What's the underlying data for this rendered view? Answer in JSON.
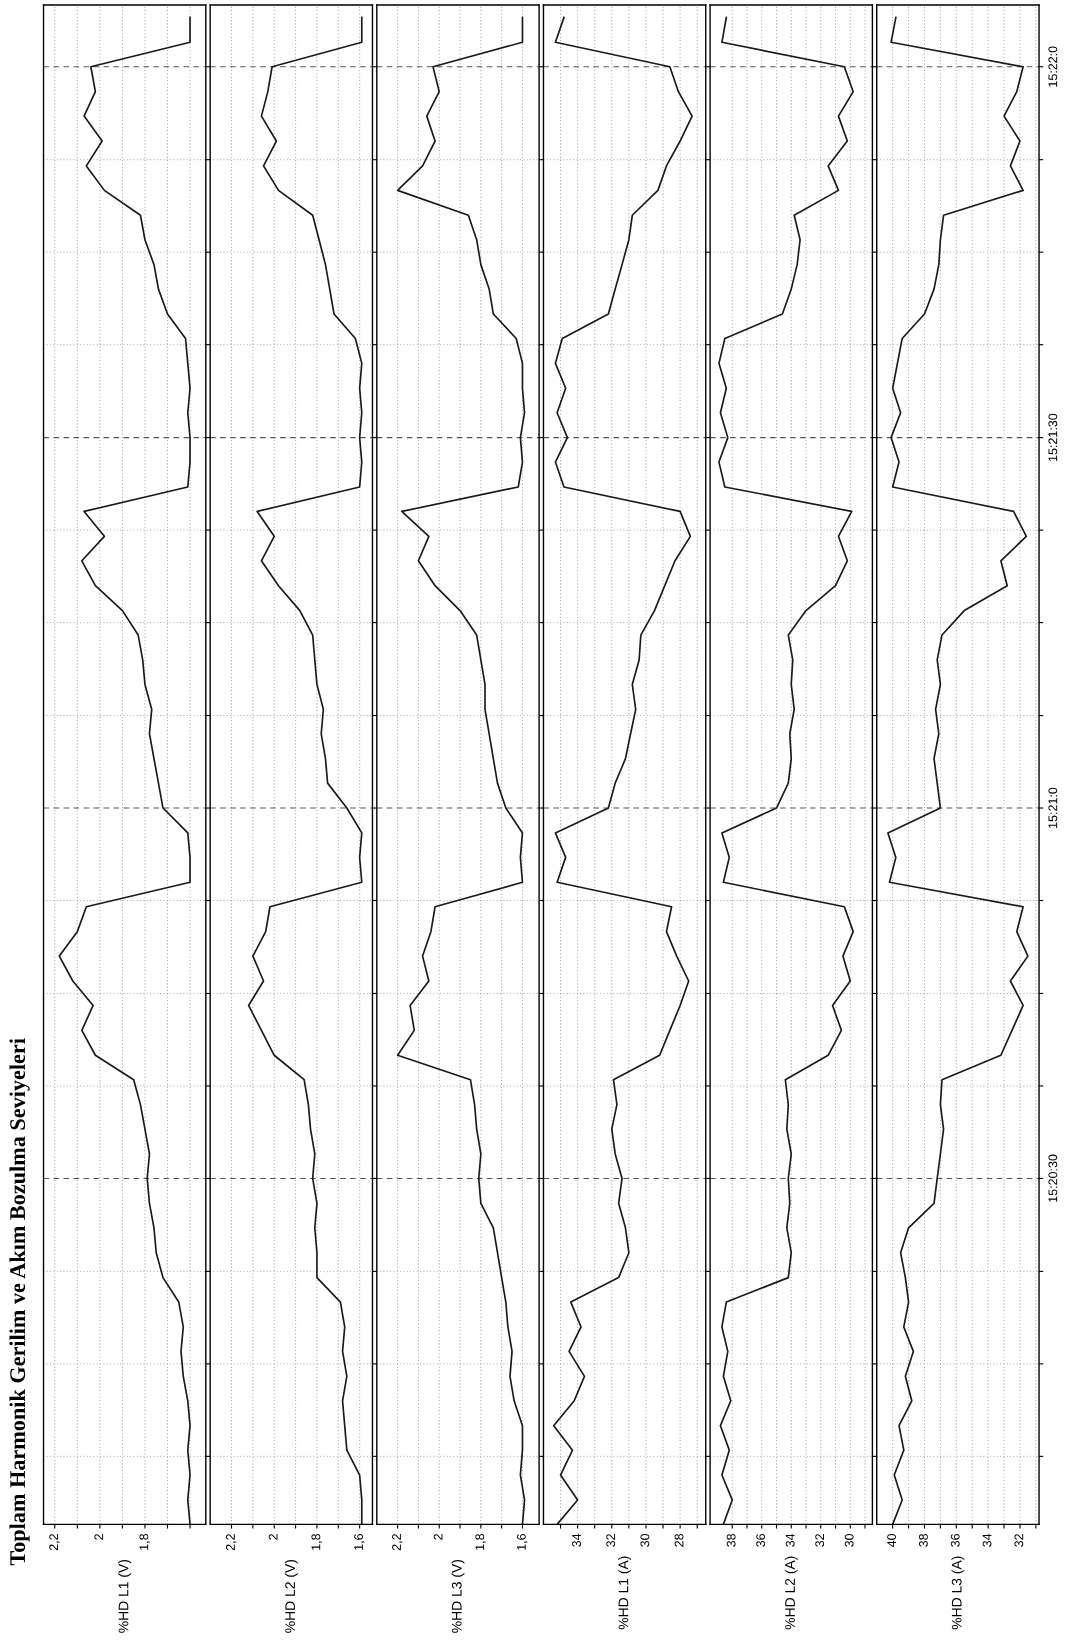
{
  "chart_data": [
    {
      "type": "line",
      "orientation": "horizontal",
      "title": "Toplam Harmonik Gerilim ve Akım Bozulma Seviyeleri",
      "ylabel": "%HD L1 (V)",
      "x": [
        15.33389,
        15.33444,
        15.335,
        15.33556,
        15.33611,
        15.33667,
        15.33722,
        15.33778,
        15.33833,
        15.33889,
        15.33944,
        15.34,
        15.34056,
        15.34111,
        15.34167,
        15.34222,
        15.34278,
        15.34333,
        15.34389,
        15.34444,
        15.345,
        15.34556,
        15.34611,
        15.34667,
        15.34722,
        15.34778,
        15.34833,
        15.34889,
        15.34944,
        15.35,
        15.35056,
        15.35111,
        15.35167,
        15.35222,
        15.35278,
        15.35333,
        15.35389,
        15.35444,
        15.355,
        15.35556,
        15.35611,
        15.35667,
        15.35722,
        15.35778,
        15.35833,
        15.35889,
        15.35944,
        15.36,
        15.36056,
        15.36111,
        15.36167,
        15.36222,
        15.36278,
        15.36333,
        15.36389,
        15.36444,
        15.365,
        15.36556,
        15.36611,
        15.36667,
        15.36722,
        15.36778
      ],
      "series": [
        {
          "color": "#1a1a1a",
          "values": [
            1.6,
            1.61,
            1.6,
            1.61,
            1.6,
            1.61,
            1.63,
            1.64,
            1.63,
            1.65,
            1.72,
            1.75,
            1.76,
            1.78,
            1.79,
            1.78,
            1.8,
            1.82,
            1.85,
            2.02,
            2.08,
            2.03,
            2.12,
            2.18,
            2.1,
            2.06,
            1.6,
            1.6,
            1.61,
            1.72,
            1.74,
            1.76,
            1.78,
            1.77,
            1.8,
            1.81,
            1.83,
            1.9,
            2.02,
            2.08,
            1.98,
            2.07,
            1.61,
            1.6,
            1.6,
            1.61,
            1.6,
            1.61,
            1.62,
            1.7,
            1.74,
            1.76,
            1.8,
            1.82,
            1.98,
            2.06,
            1.99,
            2.07,
            2.02,
            2.04,
            1.6,
            1.6
          ]
        }
      ],
      "xlim": [
        2.25,
        1.53
      ],
      "xticks": [
        {
          "value": 2.2,
          "label": "2,2"
        },
        {
          "value": 2.1,
          "label": null
        },
        2,
        {
          "value": 1.9,
          "label": null
        },
        {
          "value": 1.8,
          "label": "1,8"
        },
        {
          "value": 1.7,
          "label": null
        },
        {
          "value": 1.6,
          "label": null
        }
      ],
      "ylim": [
        15.33389,
        15.36806
      ],
      "yticks": [
        {
          "value": 15.33542,
          "label": null
        },
        {
          "value": 15.3375,
          "label": null
        },
        {
          "value": 15.33958,
          "label": null
        },
        {
          "value": 15.34167,
          "label": null
        },
        {
          "value": 15.34375,
          "label": null
        },
        {
          "value": 15.34583,
          "label": null
        },
        {
          "value": 15.34792,
          "label": null
        },
        {
          "value": 15.35,
          "label": null
        },
        {
          "value": 15.35208,
          "label": null
        },
        {
          "value": 15.35417,
          "label": null
        },
        {
          "value": 15.35625,
          "label": null
        },
        {
          "value": 15.35833,
          "label": null
        },
        {
          "value": 15.36042,
          "label": null
        },
        {
          "value": 15.3625,
          "label": null
        },
        {
          "value": 15.36458,
          "label": null
        },
        {
          "value": 15.36667,
          "label": null
        }
      ],
      "grid": true,
      "tick_labels": "x"
    },
    {
      "type": "line",
      "orientation": "horizontal",
      "ylabel": "%HD L2 (V)",
      "x": [
        15.33389,
        15.33444,
        15.335,
        15.33556,
        15.33611,
        15.33667,
        15.33722,
        15.33778,
        15.33833,
        15.33889,
        15.33944,
        15.34,
        15.34056,
        15.34111,
        15.34167,
        15.34222,
        15.34278,
        15.34333,
        15.34389,
        15.34444,
        15.345,
        15.34556,
        15.34611,
        15.34667,
        15.34722,
        15.34778,
        15.34833,
        15.34889,
        15.34944,
        15.35,
        15.35056,
        15.35111,
        15.35167,
        15.35222,
        15.35278,
        15.35333,
        15.35389,
        15.35444,
        15.355,
        15.35556,
        15.35611,
        15.35667,
        15.35722,
        15.35778,
        15.35833,
        15.35889,
        15.35944,
        15.36,
        15.36056,
        15.36111,
        15.36167,
        15.36222,
        15.36278,
        15.36333,
        15.36389,
        15.36444,
        15.365,
        15.36556,
        15.36611,
        15.36667,
        15.36722,
        15.36778
      ],
      "series": [
        {
          "color": "#1a1a1a",
          "values": [
            1.59,
            1.59,
            1.6,
            1.66,
            1.67,
            1.68,
            1.66,
            1.68,
            1.67,
            1.69,
            1.8,
            1.8,
            1.81,
            1.8,
            1.82,
            1.81,
            1.83,
            1.84,
            1.86,
            2.0,
            2.06,
            2.12,
            2.05,
            2.1,
            2.04,
            2.02,
            1.59,
            1.6,
            1.59,
            1.66,
            1.75,
            1.76,
            1.78,
            1.77,
            1.8,
            1.81,
            1.82,
            1.88,
            1.98,
            2.06,
            2.0,
            2.08,
            1.6,
            1.59,
            1.6,
            1.59,
            1.6,
            1.59,
            1.62,
            1.72,
            1.74,
            1.76,
            1.79,
            1.82,
            1.98,
            2.05,
            1.99,
            2.06,
            2.03,
            2.01,
            1.59,
            1.59
          ]
        }
      ],
      "xlim": [
        2.3,
        1.54
      ],
      "xticks": [
        {
          "value": 2.2,
          "label": "2,2"
        },
        {
          "value": 2.1,
          "label": null
        },
        2,
        {
          "value": 1.9,
          "label": null
        },
        {
          "value": 1.8,
          "label": "1,8"
        },
        {
          "value": 1.7,
          "label": null
        },
        {
          "value": 1.6,
          "label": "1,6"
        }
      ],
      "ylim": [
        15.33389,
        15.36806
      ],
      "yticks": [
        {
          "value": 15.33542,
          "label": null
        },
        {
          "value": 15.3375,
          "label": null
        },
        {
          "value": 15.33958,
          "label": null
        },
        {
          "value": 15.34167,
          "label": null
        },
        {
          "value": 15.34375,
          "label": null
        },
        {
          "value": 15.34583,
          "label": null
        },
        {
          "value": 15.34792,
          "label": null
        },
        {
          "value": 15.35,
          "label": null
        },
        {
          "value": 15.35208,
          "label": null
        },
        {
          "value": 15.35417,
          "label": null
        },
        {
          "value": 15.35625,
          "label": null
        },
        {
          "value": 15.35833,
          "label": null
        },
        {
          "value": 15.36042,
          "label": null
        },
        {
          "value": 15.3625,
          "label": null
        },
        {
          "value": 15.36458,
          "label": null
        },
        {
          "value": 15.36667,
          "label": null
        }
      ],
      "grid": true,
      "tick_labels": "x"
    },
    {
      "type": "line",
      "orientation": "horizontal",
      "ylabel": "%HD L3 (V)",
      "x": [
        15.33389,
        15.33444,
        15.335,
        15.33556,
        15.33611,
        15.33667,
        15.33722,
        15.33778,
        15.33833,
        15.33889,
        15.33944,
        15.34,
        15.34056,
        15.34111,
        15.34167,
        15.34222,
        15.34278,
        15.34333,
        15.34389,
        15.34444,
        15.345,
        15.34556,
        15.34611,
        15.34667,
        15.34722,
        15.34778,
        15.34833,
        15.34889,
        15.34944,
        15.35,
        15.35056,
        15.35111,
        15.35167,
        15.35222,
        15.35278,
        15.35333,
        15.35389,
        15.35444,
        15.355,
        15.35556,
        15.35611,
        15.35667,
        15.35722,
        15.35778,
        15.35833,
        15.35889,
        15.35944,
        15.36,
        15.36056,
        15.36111,
        15.36167,
        15.36222,
        15.36278,
        15.36333,
        15.36389,
        15.36444,
        15.365,
        15.36556,
        15.36611,
        15.36667,
        15.36722,
        15.36778
      ],
      "series": [
        {
          "color": "#1a1a1a",
          "values": [
            1.6,
            1.59,
            1.61,
            1.6,
            1.6,
            1.64,
            1.66,
            1.65,
            1.67,
            1.68,
            1.7,
            1.72,
            1.74,
            1.8,
            1.81,
            1.8,
            1.82,
            1.83,
            1.85,
            2.2,
            2.12,
            2.14,
            2.05,
            2.08,
            2.04,
            2.02,
            1.6,
            1.61,
            1.6,
            1.68,
            1.72,
            1.74,
            1.76,
            1.78,
            1.78,
            1.8,
            1.82,
            1.9,
            2.02,
            2.1,
            2.05,
            2.18,
            1.62,
            1.6,
            1.61,
            1.59,
            1.6,
            1.6,
            1.63,
            1.74,
            1.76,
            1.8,
            1.82,
            1.86,
            2.2,
            2.08,
            2.02,
            2.06,
            2.0,
            2.03,
            1.6,
            1.6
          ]
        }
      ],
      "xlim": [
        2.3,
        1.52
      ],
      "xticks": [
        {
          "value": 2.2,
          "label": "2,2"
        },
        {
          "value": 2.1,
          "label": null
        },
        2,
        {
          "value": 1.9,
          "label": null
        },
        {
          "value": 1.8,
          "label": "1,8"
        },
        {
          "value": 1.7,
          "label": null
        },
        {
          "value": 1.6,
          "label": "1,6"
        }
      ],
      "ylim": [
        15.33389,
        15.36806
      ],
      "yticks": [
        {
          "value": 15.33542,
          "label": null
        },
        {
          "value": 15.3375,
          "label": null
        },
        {
          "value": 15.33958,
          "label": null
        },
        {
          "value": 15.34167,
          "label": null
        },
        {
          "value": 15.34375,
          "label": null
        },
        {
          "value": 15.34583,
          "label": null
        },
        {
          "value": 15.34792,
          "label": null
        },
        {
          "value": 15.35,
          "label": null
        },
        {
          "value": 15.35208,
          "label": null
        },
        {
          "value": 15.35417,
          "label": null
        },
        {
          "value": 15.35625,
          "label": null
        },
        {
          "value": 15.35833,
          "label": null
        },
        {
          "value": 15.36042,
          "label": null
        },
        {
          "value": 15.3625,
          "label": null
        },
        {
          "value": 15.36458,
          "label": null
        },
        {
          "value": 15.36667,
          "label": null
        }
      ],
      "grid": true,
      "tick_labels": "x"
    },
    {
      "type": "line",
      "orientation": "horizontal",
      "ylabel": "%HD L1 (A)",
      "x": [
        15.33389,
        15.33444,
        15.335,
        15.33556,
        15.33611,
        15.33667,
        15.33722,
        15.33778,
        15.33833,
        15.33889,
        15.33944,
        15.34,
        15.34056,
        15.34111,
        15.34167,
        15.34222,
        15.34278,
        15.34333,
        15.34389,
        15.34444,
        15.345,
        15.34556,
        15.34611,
        15.34667,
        15.34722,
        15.34778,
        15.34833,
        15.34889,
        15.34944,
        15.35,
        15.35056,
        15.35111,
        15.35167,
        15.35222,
        15.35278,
        15.35333,
        15.35389,
        15.35444,
        15.355,
        15.35556,
        15.35611,
        15.35667,
        15.35722,
        15.35778,
        15.35833,
        15.35889,
        15.35944,
        15.36,
        15.36056,
        15.36111,
        15.36167,
        15.36222,
        15.36278,
        15.36333,
        15.36389,
        15.36444,
        15.365,
        15.36556,
        15.36611,
        15.36667,
        15.36722,
        15.36778
      ],
      "series": [
        {
          "color": "#1a1a1a",
          "values": [
            35.2,
            34.0,
            35.0,
            34.3,
            35.4,
            34.2,
            33.6,
            34.5,
            33.8,
            34.4,
            31.6,
            31.0,
            31.2,
            31.6,
            31.4,
            31.8,
            32.0,
            31.7,
            31.9,
            29.2,
            28.6,
            28.0,
            27.5,
            28.2,
            28.8,
            28.5,
            35.2,
            34.7,
            35.3,
            32.2,
            31.8,
            31.2,
            30.9,
            30.6,
            30.8,
            30.4,
            30.3,
            29.5,
            28.9,
            28.3,
            27.4,
            28.0,
            34.8,
            35.3,
            34.6,
            35.2,
            34.7,
            35.3,
            34.9,
            32.2,
            31.8,
            31.4,
            31.0,
            30.8,
            29.3,
            28.8,
            28.0,
            27.3,
            28.1,
            28.6,
            35.3,
            34.8
          ]
        }
      ],
      "xlim": [
        36,
        26.5
      ],
      "xticks": [
        {
          "value": 35,
          "label": null
        },
        34,
        {
          "value": 33,
          "label": null
        },
        32,
        {
          "value": 31,
          "label": null
        },
        30,
        {
          "value": 29,
          "label": null
        },
        28,
        {
          "value": 27,
          "label": null
        }
      ],
      "ylim": [
        15.33389,
        15.36806
      ],
      "yticks": [
        {
          "value": 15.33542,
          "label": null
        },
        {
          "value": 15.3375,
          "label": null
        },
        {
          "value": 15.33958,
          "label": null
        },
        {
          "value": 15.34167,
          "label": null
        },
        {
          "value": 15.34375,
          "label": null
        },
        {
          "value": 15.34583,
          "label": null
        },
        {
          "value": 15.34792,
          "label": null
        },
        {
          "value": 15.35,
          "label": null
        },
        {
          "value": 15.35208,
          "label": null
        },
        {
          "value": 15.35417,
          "label": null
        },
        {
          "value": 15.35625,
          "label": null
        },
        {
          "value": 15.35833,
          "label": null
        },
        {
          "value": 15.36042,
          "label": null
        },
        {
          "value": 15.3625,
          "label": null
        },
        {
          "value": 15.36458,
          "label": null
        },
        {
          "value": 15.36667,
          "label": null
        }
      ],
      "grid": true,
      "tick_labels": "x"
    },
    {
      "type": "line",
      "orientation": "horizontal",
      "ylabel": "%HD L2 (A)",
      "x": [
        15.33389,
        15.33444,
        15.335,
        15.33556,
        15.33611,
        15.33667,
        15.33722,
        15.33778,
        15.33833,
        15.33889,
        15.33944,
        15.34,
        15.34056,
        15.34111,
        15.34167,
        15.34222,
        15.34278,
        15.34333,
        15.34389,
        15.34444,
        15.345,
        15.34556,
        15.34611,
        15.34667,
        15.34722,
        15.34778,
        15.34833,
        15.34889,
        15.34944,
        15.35,
        15.35056,
        15.35111,
        15.35167,
        15.35222,
        15.35278,
        15.35333,
        15.35389,
        15.35444,
        15.355,
        15.35556,
        15.35611,
        15.35667,
        15.35722,
        15.35778,
        15.35833,
        15.35889,
        15.35944,
        15.36,
        15.36056,
        15.36111,
        15.36167,
        15.36222,
        15.36278,
        15.36333,
        15.36389,
        15.36444,
        15.365,
        15.36556,
        15.36611,
        15.36667,
        15.36722,
        15.36778
      ],
      "series": [
        {
          "color": "#1a1a1a",
          "values": [
            38.6,
            38.0,
            38.7,
            38.2,
            38.8,
            38.1,
            38.6,
            38.3,
            38.7,
            38.4,
            34.2,
            34.0,
            34.3,
            34.1,
            34.2,
            34.0,
            34.3,
            34.2,
            34.4,
            31.5,
            30.6,
            31.2,
            30.0,
            30.5,
            29.8,
            30.4,
            38.6,
            38.2,
            38.7,
            35.0,
            34.2,
            34.0,
            34.1,
            33.8,
            34.0,
            33.9,
            34.2,
            33.0,
            31.0,
            30.2,
            30.8,
            29.9,
            38.5,
            38.9,
            38.3,
            38.8,
            38.4,
            38.9,
            38.5,
            34.6,
            34.0,
            33.6,
            33.4,
            33.8,
            30.8,
            31.5,
            30.2,
            30.8,
            29.8,
            30.4,
            38.7,
            38.4
          ]
        }
      ],
      "xlim": [
        39.5,
        28.5
      ],
      "xticks": [
        38,
        {
          "value": 37,
          "label": null
        },
        36,
        {
          "value": 35,
          "label": null
        },
        34,
        {
          "value": 33,
          "label": null
        },
        32,
        {
          "value": 31,
          "label": null
        },
        30,
        {
          "value": 29,
          "label": null
        }
      ],
      "ylim": [
        15.33389,
        15.36806
      ],
      "yticks": [
        {
          "value": 15.33542,
          "label": null
        },
        {
          "value": 15.3375,
          "label": null
        },
        {
          "value": 15.33958,
          "label": null
        },
        {
          "value": 15.34167,
          "label": null
        },
        {
          "value": 15.34375,
          "label": null
        },
        {
          "value": 15.34583,
          "label": null
        },
        {
          "value": 15.34792,
          "label": null
        },
        {
          "value": 15.35,
          "label": null
        },
        {
          "value": 15.35208,
          "label": null
        },
        {
          "value": 15.35417,
          "label": null
        },
        {
          "value": 15.35625,
          "label": null
        },
        {
          "value": 15.35833,
          "label": null
        },
        {
          "value": 15.36042,
          "label": null
        },
        {
          "value": 15.3625,
          "label": null
        },
        {
          "value": 15.36458,
          "label": null
        },
        {
          "value": 15.36667,
          "label": null
        }
      ],
      "grid": true,
      "tick_labels": "x"
    },
    {
      "type": "line",
      "orientation": "horizontal",
      "ylabel": "%HD L3 (A)",
      "x": [
        15.33389,
        15.33444,
        15.335,
        15.33556,
        15.33611,
        15.33667,
        15.33722,
        15.33778,
        15.33833,
        15.33889,
        15.33944,
        15.34,
        15.34056,
        15.34111,
        15.34167,
        15.34222,
        15.34278,
        15.34333,
        15.34389,
        15.34444,
        15.345,
        15.34556,
        15.34611,
        15.34667,
        15.34722,
        15.34778,
        15.34833,
        15.34889,
        15.34944,
        15.35,
        15.35056,
        15.35111,
        15.35167,
        15.35222,
        15.35278,
        15.35333,
        15.35389,
        15.35444,
        15.355,
        15.35556,
        15.35611,
        15.35667,
        15.35722,
        15.35778,
        15.35833,
        15.35889,
        15.35944,
        15.36,
        15.36056,
        15.36111,
        15.36167,
        15.36222,
        15.36278,
        15.36333,
        15.36389,
        15.36444,
        15.365,
        15.36556,
        15.36611,
        15.36667,
        15.36722,
        15.36778
      ],
      "series": [
        {
          "color": "#1a1a1a",
          "values": [
            40.0,
            39.4,
            39.9,
            39.3,
            39.6,
            38.8,
            39.2,
            38.7,
            39.3,
            39.0,
            39.2,
            39.5,
            39.0,
            37.4,
            37.2,
            37.0,
            36.8,
            37.0,
            36.9,
            33.2,
            32.5,
            31.8,
            32.6,
            31.5,
            32.2,
            31.8,
            40.2,
            39.8,
            40.3,
            37.0,
            37.2,
            37.4,
            37.1,
            37.3,
            37.0,
            37.2,
            36.9,
            35.5,
            32.8,
            33.2,
            31.6,
            32.4,
            40.0,
            39.6,
            40.1,
            39.5,
            40.0,
            39.7,
            39.4,
            38.0,
            37.4,
            37.1,
            37.0,
            36.8,
            31.8,
            32.6,
            32.0,
            33.0,
            32.2,
            31.8,
            40.1,
            39.8
          ]
        }
      ],
      "xlim": [
        41,
        30.8
      ],
      "xticks": [
        40,
        {
          "value": 39,
          "label": null
        },
        38,
        {
          "value": 37,
          "label": null
        },
        36,
        {
          "value": 35,
          "label": null
        },
        34,
        {
          "value": 33,
          "label": null
        },
        32,
        {
          "value": 31,
          "label": null
        }
      ],
      "ylim": [
        15.33389,
        15.36806
      ],
      "yticks": [
        {
          "value": 15.33542,
          "label": null
        },
        {
          "value": 15.3375,
          "label": null
        },
        {
          "value": 15.33958,
          "label": null
        },
        {
          "value": 15.34167,
          "label": "15:20:30"
        },
        {
          "value": 15.34375,
          "label": null
        },
        {
          "value": 15.34583,
          "label": null
        },
        {
          "value": 15.34792,
          "label": null
        },
        {
          "value": 15.35,
          "label": "15:21:0"
        },
        {
          "value": 15.35208,
          "label": null
        },
        {
          "value": 15.35417,
          "label": null
        },
        {
          "value": 15.35625,
          "label": null
        },
        {
          "value": 15.35833,
          "label": "15:21:30"
        },
        {
          "value": 15.36042,
          "label": null
        },
        {
          "value": 15.3625,
          "label": null
        },
        {
          "value": 15.36458,
          "label": null
        },
        {
          "value": 15.36667,
          "label": "15:22:0"
        }
      ],
      "grid": true
    }
  ]
}
